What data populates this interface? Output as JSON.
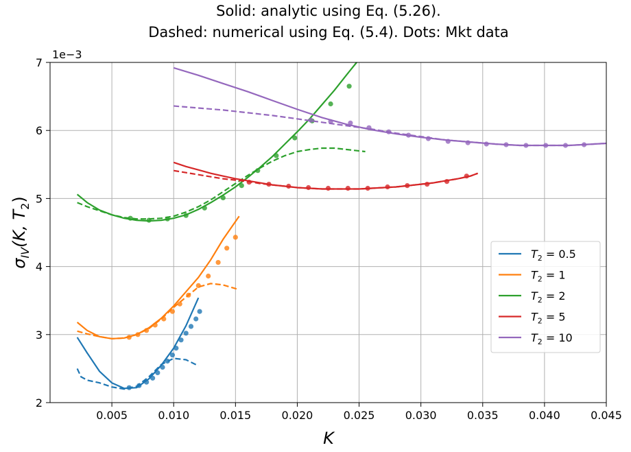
{
  "chart_data": {
    "type": "line",
    "title_line1": "Solid: analytic using Eq. (5.26).",
    "title_line2": "Dashed: numerical using Eq. (5.4). Dots: Mkt data",
    "xlabel": "K",
    "ylabel": "σIV(K, T2)",
    "ylabel_parts": {
      "sym": "σ",
      "sub1": "IV",
      "args": "(K, T",
      "sub2": "2",
      "close": ")"
    },
    "y_offset_label": "1e−3",
    "xlim": [
      0.0,
      0.045
    ],
    "ylim": [
      2,
      7
    ],
    "grid": true,
    "legend_position": "center-right",
    "x_ticks": [
      {
        "value": 0.005,
        "label": "0.005"
      },
      {
        "value": 0.01,
        "label": "0.010"
      },
      {
        "value": 0.015,
        "label": "0.015"
      },
      {
        "value": 0.02,
        "label": "0.020"
      },
      {
        "value": 0.025,
        "label": "0.025"
      },
      {
        "value": 0.03,
        "label": "0.030"
      },
      {
        "value": 0.035,
        "label": "0.035"
      },
      {
        "value": 0.04,
        "label": "0.040"
      },
      {
        "value": 0.045,
        "label": "0.045"
      }
    ],
    "y_ticks": [
      {
        "value": 2,
        "label": "2"
      },
      {
        "value": 3,
        "label": "3"
      },
      {
        "value": 4,
        "label": "4"
      },
      {
        "value": 5,
        "label": "5"
      },
      {
        "value": 6,
        "label": "6"
      },
      {
        "value": 7,
        "label": "7"
      }
    ],
    "series": [
      {
        "name": "T2 = 0.5",
        "legend_value": "0.5",
        "color": "#1f77b4",
        "analytic": [
          [
            0.0022,
            2.96
          ],
          [
            0.003,
            2.73
          ],
          [
            0.004,
            2.46
          ],
          [
            0.005,
            2.29
          ],
          [
            0.006,
            2.21
          ],
          [
            0.007,
            2.22
          ],
          [
            0.008,
            2.35
          ],
          [
            0.009,
            2.55
          ],
          [
            0.01,
            2.8
          ],
          [
            0.011,
            3.13
          ],
          [
            0.012,
            3.54
          ]
        ],
        "numerical": [
          [
            0.0022,
            2.5
          ],
          [
            0.0025,
            2.38
          ],
          [
            0.003,
            2.33
          ],
          [
            0.004,
            2.29
          ],
          [
            0.005,
            2.23
          ],
          [
            0.006,
            2.2
          ],
          [
            0.007,
            2.24
          ],
          [
            0.008,
            2.38
          ],
          [
            0.009,
            2.56
          ],
          [
            0.01,
            2.65
          ],
          [
            0.011,
            2.63
          ],
          [
            0.012,
            2.54
          ]
        ],
        "market": [
          [
            0.0064,
            2.22
          ],
          [
            0.0072,
            2.25
          ],
          [
            0.0078,
            2.3
          ],
          [
            0.0083,
            2.36
          ],
          [
            0.0087,
            2.44
          ],
          [
            0.0091,
            2.52
          ],
          [
            0.0095,
            2.61
          ],
          [
            0.0099,
            2.7
          ],
          [
            0.0102,
            2.8
          ],
          [
            0.0106,
            2.92
          ],
          [
            0.011,
            3.02
          ],
          [
            0.0114,
            3.12
          ],
          [
            0.0118,
            3.23
          ],
          [
            0.0121,
            3.34
          ]
        ]
      },
      {
        "name": "T2 = 1",
        "legend_value": "1",
        "color": "#ff7f0e",
        "analytic": [
          [
            0.0022,
            3.18
          ],
          [
            0.003,
            3.06
          ],
          [
            0.004,
            2.97
          ],
          [
            0.005,
            2.94
          ],
          [
            0.006,
            2.95
          ],
          [
            0.007,
            3.0
          ],
          [
            0.008,
            3.1
          ],
          [
            0.009,
            3.24
          ],
          [
            0.01,
            3.42
          ],
          [
            0.011,
            3.63
          ],
          [
            0.012,
            3.84
          ],
          [
            0.013,
            4.1
          ],
          [
            0.014,
            4.4
          ],
          [
            0.0153,
            4.74
          ]
        ],
        "numerical": [
          [
            0.0022,
            3.05
          ],
          [
            0.003,
            3.01
          ],
          [
            0.004,
            2.97
          ],
          [
            0.005,
            2.94
          ],
          [
            0.006,
            2.95
          ],
          [
            0.007,
            3.0
          ],
          [
            0.008,
            3.09
          ],
          [
            0.009,
            3.23
          ],
          [
            0.01,
            3.4
          ],
          [
            0.011,
            3.55
          ],
          [
            0.012,
            3.7
          ],
          [
            0.013,
            3.75
          ],
          [
            0.014,
            3.73
          ],
          [
            0.0153,
            3.66
          ]
        ],
        "market": [
          [
            0.0064,
            2.96
          ],
          [
            0.0071,
            3.0
          ],
          [
            0.0078,
            3.06
          ],
          [
            0.0085,
            3.14
          ],
          [
            0.0092,
            3.23
          ],
          [
            0.0099,
            3.34
          ],
          [
            0.0105,
            3.45
          ],
          [
            0.0112,
            3.58
          ],
          [
            0.012,
            3.72
          ],
          [
            0.0128,
            3.86
          ],
          [
            0.0136,
            4.06
          ],
          [
            0.0143,
            4.27
          ],
          [
            0.015,
            4.43
          ]
        ]
      },
      {
        "name": "T2 = 2",
        "legend_value": "2",
        "color": "#2ca02c",
        "analytic": [
          [
            0.0022,
            5.06
          ],
          [
            0.003,
            4.94
          ],
          [
            0.004,
            4.83
          ],
          [
            0.005,
            4.76
          ],
          [
            0.006,
            4.71
          ],
          [
            0.007,
            4.68
          ],
          [
            0.008,
            4.67
          ],
          [
            0.009,
            4.68
          ],
          [
            0.01,
            4.71
          ],
          [
            0.011,
            4.76
          ],
          [
            0.012,
            4.84
          ],
          [
            0.013,
            4.94
          ],
          [
            0.014,
            5.05
          ],
          [
            0.015,
            5.17
          ],
          [
            0.016,
            5.31
          ],
          [
            0.017,
            5.46
          ],
          [
            0.018,
            5.62
          ],
          [
            0.019,
            5.8
          ],
          [
            0.02,
            5.98
          ],
          [
            0.021,
            6.17
          ],
          [
            0.022,
            6.38
          ],
          [
            0.023,
            6.59
          ],
          [
            0.024,
            6.82
          ],
          [
            0.0248,
            7.0
          ]
        ],
        "numerical": [
          [
            0.0022,
            4.94
          ],
          [
            0.003,
            4.88
          ],
          [
            0.004,
            4.82
          ],
          [
            0.005,
            4.76
          ],
          [
            0.006,
            4.72
          ],
          [
            0.007,
            4.7
          ],
          [
            0.008,
            4.7
          ],
          [
            0.009,
            4.71
          ],
          [
            0.01,
            4.74
          ],
          [
            0.011,
            4.8
          ],
          [
            0.012,
            4.88
          ],
          [
            0.013,
            4.98
          ],
          [
            0.014,
            5.1
          ],
          [
            0.015,
            5.22
          ],
          [
            0.016,
            5.34
          ],
          [
            0.017,
            5.45
          ],
          [
            0.018,
            5.55
          ],
          [
            0.019,
            5.63
          ],
          [
            0.02,
            5.69
          ],
          [
            0.021,
            5.72
          ],
          [
            0.022,
            5.74
          ],
          [
            0.023,
            5.74
          ],
          [
            0.024,
            5.72
          ],
          [
            0.0255,
            5.69
          ]
        ],
        "market": [
          [
            0.0065,
            4.71
          ],
          [
            0.008,
            4.68
          ],
          [
            0.0095,
            4.7
          ],
          [
            0.011,
            4.75
          ],
          [
            0.0125,
            4.86
          ],
          [
            0.014,
            5.01
          ],
          [
            0.0155,
            5.19
          ],
          [
            0.0168,
            5.41
          ],
          [
            0.0183,
            5.63
          ],
          [
            0.0198,
            5.89
          ],
          [
            0.0212,
            6.14
          ],
          [
            0.0227,
            6.39
          ],
          [
            0.0242,
            6.65
          ]
        ]
      },
      {
        "name": "T2 = 5",
        "legend_value": "5",
        "color": "#d62728",
        "analytic": [
          [
            0.01,
            5.53
          ],
          [
            0.011,
            5.47
          ],
          [
            0.012,
            5.42
          ],
          [
            0.013,
            5.37
          ],
          [
            0.014,
            5.33
          ],
          [
            0.015,
            5.29
          ],
          [
            0.016,
            5.26
          ],
          [
            0.017,
            5.23
          ],
          [
            0.018,
            5.2
          ],
          [
            0.019,
            5.18
          ],
          [
            0.02,
            5.16
          ],
          [
            0.021,
            5.15
          ],
          [
            0.022,
            5.14
          ],
          [
            0.023,
            5.14
          ],
          [
            0.024,
            5.14
          ],
          [
            0.025,
            5.14
          ],
          [
            0.026,
            5.15
          ],
          [
            0.027,
            5.16
          ],
          [
            0.028,
            5.17
          ],
          [
            0.029,
            5.19
          ],
          [
            0.03,
            5.21
          ],
          [
            0.031,
            5.23
          ],
          [
            0.032,
            5.26
          ],
          [
            0.033,
            5.29
          ],
          [
            0.034,
            5.33
          ],
          [
            0.0346,
            5.37
          ]
        ],
        "numerical": [
          [
            0.01,
            5.41
          ],
          [
            0.011,
            5.38
          ],
          [
            0.012,
            5.35
          ],
          [
            0.013,
            5.32
          ],
          [
            0.014,
            5.29
          ],
          [
            0.015,
            5.27
          ],
          [
            0.016,
            5.25
          ],
          [
            0.017,
            5.22
          ],
          [
            0.018,
            5.2
          ],
          [
            0.019,
            5.18
          ],
          [
            0.02,
            5.16
          ],
          [
            0.021,
            5.15
          ],
          [
            0.022,
            5.14
          ],
          [
            0.023,
            5.14
          ],
          [
            0.024,
            5.14
          ],
          [
            0.025,
            5.14
          ],
          [
            0.026,
            5.15
          ],
          [
            0.027,
            5.16
          ],
          [
            0.028,
            5.17
          ],
          [
            0.029,
            5.19
          ],
          [
            0.03,
            5.21
          ],
          [
            0.031,
            5.23
          ],
          [
            0.032,
            5.26
          ],
          [
            0.033,
            5.29
          ],
          [
            0.034,
            5.33
          ],
          [
            0.0346,
            5.37
          ]
        ],
        "market": [
          [
            0.0161,
            5.24
          ],
          [
            0.0177,
            5.21
          ],
          [
            0.0193,
            5.18
          ],
          [
            0.0209,
            5.16
          ],
          [
            0.0225,
            5.15
          ],
          [
            0.0241,
            5.15
          ],
          [
            0.0257,
            5.15
          ],
          [
            0.0273,
            5.17
          ],
          [
            0.0289,
            5.19
          ],
          [
            0.0305,
            5.21
          ],
          [
            0.0321,
            5.25
          ],
          [
            0.0337,
            5.33
          ]
        ]
      },
      {
        "name": "T2 = 10",
        "legend_value": "10",
        "color": "#9467bd",
        "analytic": [
          [
            0.01,
            6.92
          ],
          [
            0.012,
            6.81
          ],
          [
            0.014,
            6.69
          ],
          [
            0.016,
            6.57
          ],
          [
            0.018,
            6.44
          ],
          [
            0.02,
            6.31
          ],
          [
            0.022,
            6.19
          ],
          [
            0.024,
            6.09
          ],
          [
            0.026,
            6.01
          ],
          [
            0.028,
            5.95
          ],
          [
            0.03,
            5.9
          ],
          [
            0.032,
            5.86
          ],
          [
            0.034,
            5.83
          ],
          [
            0.036,
            5.8
          ],
          [
            0.038,
            5.78
          ],
          [
            0.04,
            5.78
          ],
          [
            0.042,
            5.78
          ],
          [
            0.044,
            5.8
          ],
          [
            0.045,
            5.81
          ]
        ],
        "numerical": [
          [
            0.01,
            6.36
          ],
          [
            0.012,
            6.33
          ],
          [
            0.014,
            6.3
          ],
          [
            0.016,
            6.26
          ],
          [
            0.018,
            6.22
          ],
          [
            0.02,
            6.17
          ],
          [
            0.022,
            6.12
          ],
          [
            0.024,
            6.07
          ],
          [
            0.026,
            6.02
          ],
          [
            0.028,
            5.96
          ],
          [
            0.03,
            5.91
          ],
          [
            0.032,
            5.86
          ],
          [
            0.034,
            5.83
          ],
          [
            0.036,
            5.8
          ],
          [
            0.038,
            5.78
          ],
          [
            0.04,
            5.78
          ],
          [
            0.042,
            5.78
          ],
          [
            0.044,
            5.8
          ],
          [
            0.045,
            5.81
          ]
        ],
        "market": [
          [
            0.0211,
            6.15
          ],
          [
            0.0227,
            6.13
          ],
          [
            0.0243,
            6.11
          ],
          [
            0.0258,
            6.04
          ],
          [
            0.0274,
            5.98
          ],
          [
            0.029,
            5.93
          ],
          [
            0.0306,
            5.88
          ],
          [
            0.0322,
            5.84
          ],
          [
            0.0338,
            5.82
          ],
          [
            0.0353,
            5.8
          ],
          [
            0.0369,
            5.79
          ],
          [
            0.0385,
            5.78
          ],
          [
            0.0401,
            5.78
          ],
          [
            0.0417,
            5.78
          ],
          [
            0.0432,
            5.79
          ]
        ]
      }
    ]
  }
}
